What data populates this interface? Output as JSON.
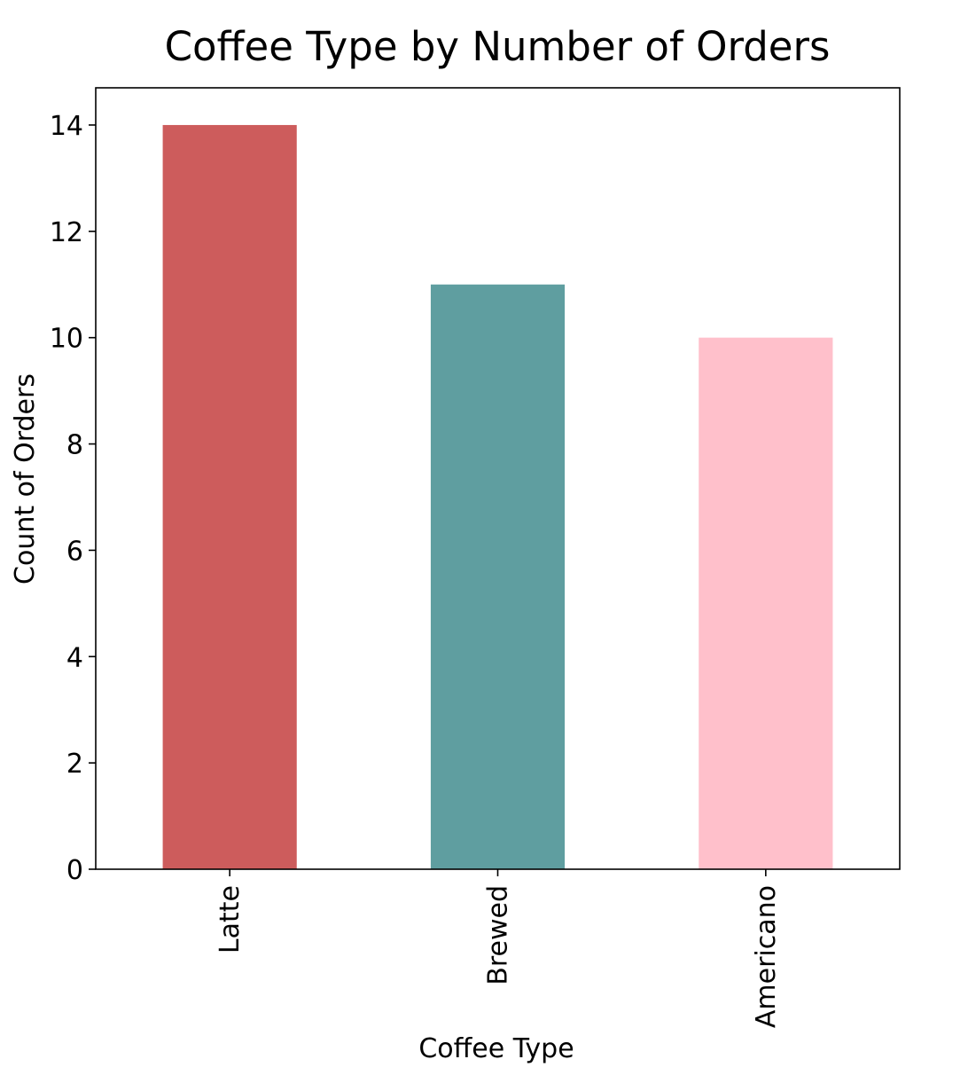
{
  "chart_data": {
    "type": "bar",
    "title": "Coffee Type by Number of Orders",
    "xlabel": "Coffee Type",
    "ylabel": "Count of Orders",
    "categories": [
      "Latte",
      "Brewed",
      "Americano"
    ],
    "values": [
      14,
      11,
      10
    ],
    "colors": [
      "#cd5c5c",
      "#5f9ea0",
      "#ffc0cb"
    ],
    "ylim": [
      0,
      14.7
    ],
    "yticks": [
      0,
      2,
      4,
      6,
      8,
      10,
      12,
      14
    ],
    "ytick_labels": [
      "0",
      "2",
      "4",
      "6",
      "8",
      "10",
      "12",
      "14"
    ],
    "grid": false,
    "legend": "none",
    "xtick_rotation": "vertical"
  }
}
